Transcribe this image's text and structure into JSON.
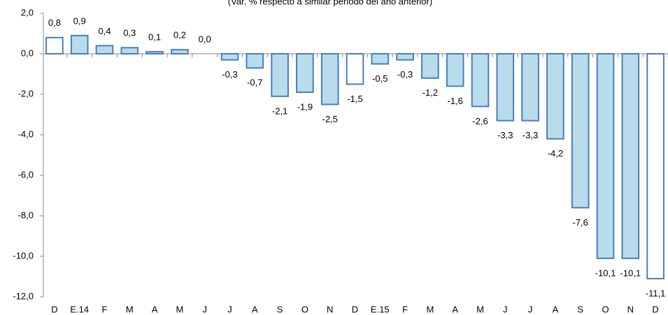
{
  "chart_data": {
    "type": "bar",
    "subtitle": "(Var. % respecto a similar periodo del año anterior)",
    "categories": [
      "D",
      "E.14",
      "F",
      "M",
      "A",
      "M",
      "J",
      "J",
      "A",
      "S",
      "O",
      "N",
      "D",
      "E.15",
      "F",
      "M",
      "A",
      "M",
      "J",
      "J",
      "A",
      "S",
      "O",
      "N",
      "D"
    ],
    "values": [
      0.8,
      0.9,
      0.4,
      0.3,
      0.1,
      0.2,
      0.0,
      -0.3,
      -0.7,
      -2.1,
      -1.9,
      -2.5,
      -1.5,
      -0.5,
      -0.3,
      -1.2,
      -1.6,
      -2.6,
      -3.3,
      -3.3,
      -4.2,
      -7.6,
      -10.1,
      -10.1,
      -11.1
    ],
    "value_labels": [
      "0,8",
      "0,9",
      "0,4",
      "0,3",
      "0,1",
      "0,2",
      "0,0",
      "-0,3",
      "-0,7",
      "-2,1",
      "-1,9",
      "-2,5",
      "-1,5",
      "-0,5",
      "-0,3",
      "-1,2",
      "-1,6",
      "-2,6",
      "-3,3",
      "-3,3",
      "-4,2",
      "-7,6",
      "-10,1",
      "-10,1",
      "-11,1"
    ],
    "colors": [
      "#ffffff",
      "#b8dcec",
      "#b8dcec",
      "#b8dcec",
      "#b8dcec",
      "#b8dcec",
      "#b8dcec",
      "#b8dcec",
      "#b8dcec",
      "#b8dcec",
      "#b8dcec",
      "#b8dcec",
      "#ffffff",
      "#b8dcec",
      "#b8dcec",
      "#b8dcec",
      "#b8dcec",
      "#b8dcec",
      "#b8dcec",
      "#b8dcec",
      "#b8dcec",
      "#b8dcec",
      "#b8dcec",
      "#b8dcec",
      "#ffffff"
    ],
    "edge_color": "#4a7ebb",
    "ylim": [
      -12,
      2
    ],
    "yticks": [
      {
        "value": -12,
        "label": "-12,0"
      },
      {
        "value": -10,
        "label": "-10,0"
      },
      {
        "value": -8,
        "label": "-8,0"
      },
      {
        "value": -6,
        "label": "-6,0"
      },
      {
        "value": -4,
        "label": "-4,0"
      },
      {
        "value": -2,
        "label": "-2,0"
      },
      {
        "value": 0,
        "label": "0,0"
      },
      {
        "value": 2,
        "label": "2,0"
      }
    ],
    "grid": false
  }
}
